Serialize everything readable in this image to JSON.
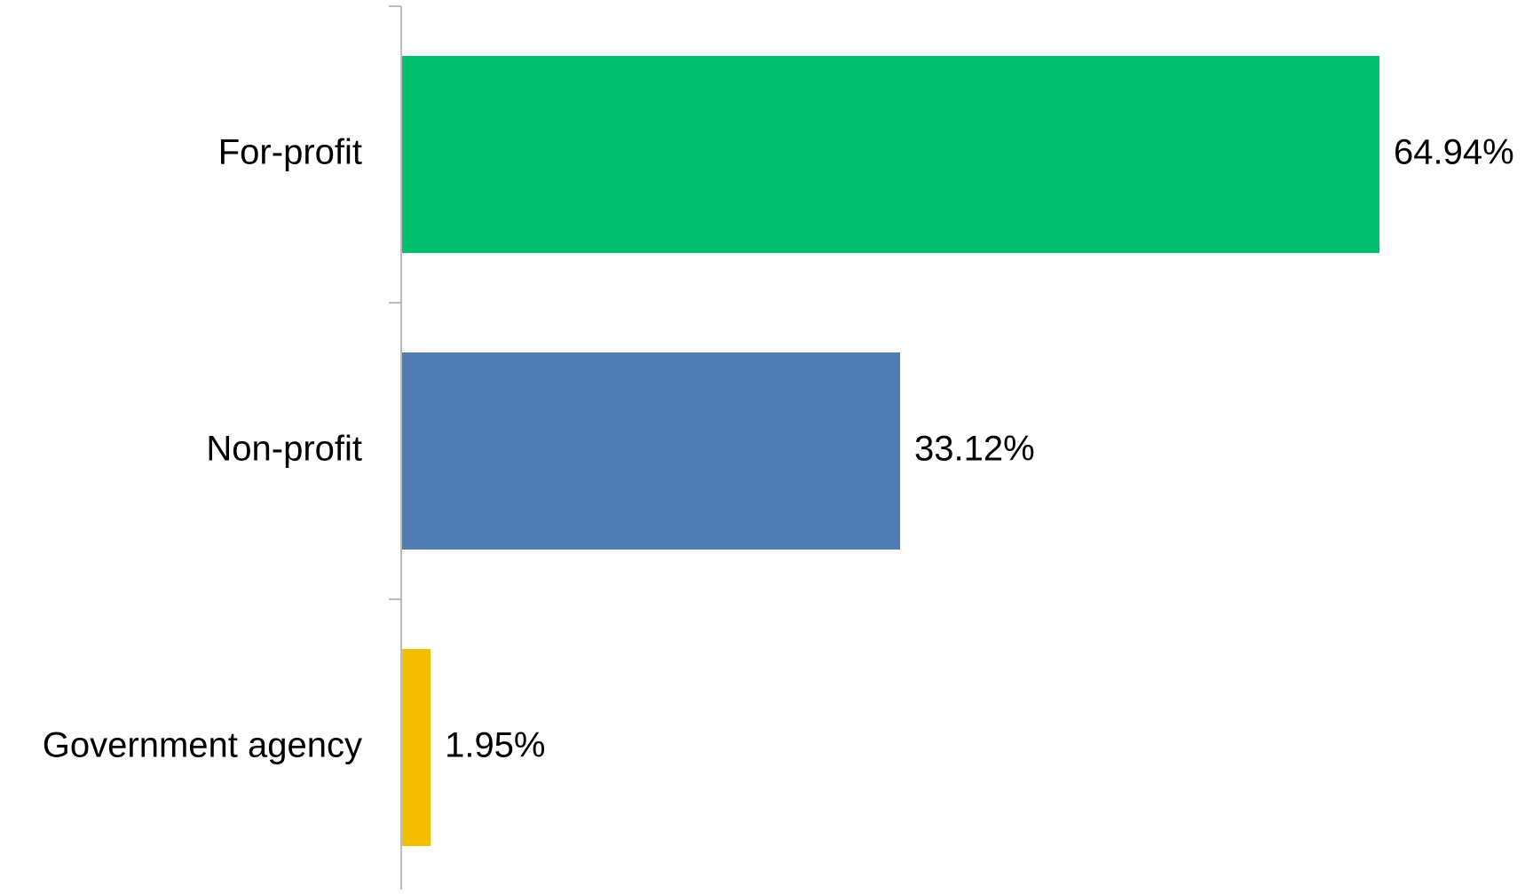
{
  "chart_data": {
    "type": "bar",
    "orientation": "horizontal",
    "categories": [
      "For-profit",
      "Non-profit",
      "Government agency"
    ],
    "values": [
      64.94,
      33.12,
      1.95
    ],
    "data_labels": [
      "64.94%",
      "33.12%",
      "1.95%"
    ],
    "colors": [
      "#00BF6F",
      "#507CB4",
      "#F6BE00"
    ],
    "title": "",
    "xlabel": "",
    "ylabel": "",
    "xlim": [
      0,
      65
    ],
    "grid": false,
    "legend": "none",
    "axis_color": "#A6A6A6"
  }
}
